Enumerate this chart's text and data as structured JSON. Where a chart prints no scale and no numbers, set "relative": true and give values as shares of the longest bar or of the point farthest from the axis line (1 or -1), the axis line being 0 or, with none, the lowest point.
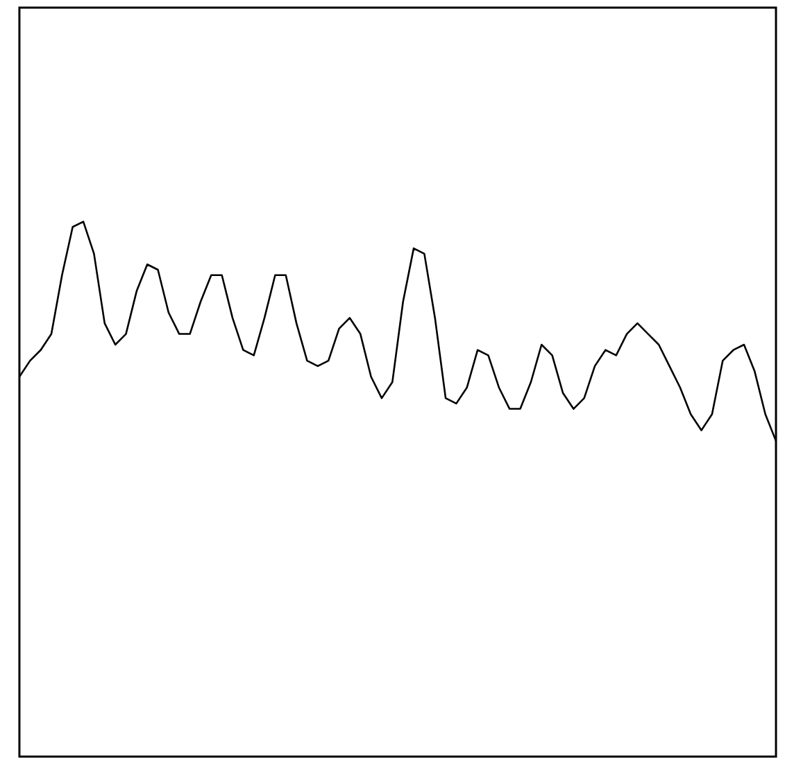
{
  "chart_data": {
    "type": "line",
    "relative": true,
    "grid": false,
    "legend": false,
    "categories": [
      null,
      null,
      null,
      null,
      null,
      null,
      null,
      null,
      null,
      null,
      null,
      null,
      null,
      null,
      null,
      null,
      null,
      null,
      null,
      null,
      null,
      null,
      null,
      null,
      null,
      null,
      null,
      null,
      null,
      null,
      null,
      null,
      null,
      null,
      null,
      null,
      null,
      null,
      null,
      null,
      null,
      null,
      null,
      null,
      null,
      null,
      null,
      null,
      null,
      null,
      null,
      null,
      null,
      null,
      null,
      null,
      null,
      null,
      null,
      null,
      null,
      null,
      null,
      null,
      null,
      null,
      null,
      null,
      null,
      null,
      null,
      null
    ],
    "series": [
      {
        "color": "#000000",
        "values": [
          0.71,
          0.74,
          0.76,
          0.79,
          0.9,
          0.99,
          1.0,
          0.94,
          0.81,
          0.77,
          0.79,
          0.87,
          0.92,
          0.91,
          0.83,
          0.79,
          0.79,
          0.85,
          0.9,
          0.9,
          0.82,
          0.76,
          0.75,
          0.82,
          0.9,
          0.9,
          0.81,
          0.74,
          0.73,
          0.74,
          0.8,
          0.82,
          0.79,
          0.71,
          0.67,
          0.7,
          0.85,
          0.95,
          0.94,
          0.82,
          0.67,
          0.66,
          0.69,
          0.76,
          0.75,
          0.69,
          0.65,
          0.65,
          0.7,
          0.77,
          0.75,
          0.68,
          0.65,
          0.67,
          0.73,
          0.76,
          0.75,
          0.79,
          0.81,
          0.79,
          0.77,
          0.73,
          0.69,
          0.64,
          0.61,
          0.64,
          0.74,
          0.76,
          0.77,
          0.72,
          0.64,
          0.59
        ]
      }
    ]
  }
}
